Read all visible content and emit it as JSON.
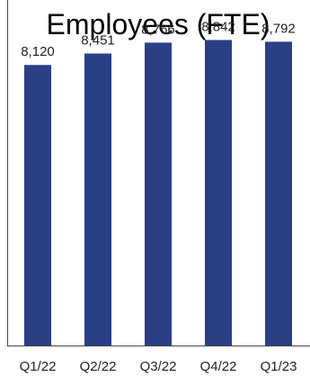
{
  "chart_data": {
    "type": "bar",
    "title": "Employees (FTE)",
    "categories": [
      "Q1/22",
      "Q2/22",
      "Q3/22",
      "Q4/22",
      "Q1/23"
    ],
    "values": [
      8120,
      8451,
      8766,
      8842,
      8792
    ],
    "value_labels": [
      "8,120",
      "8,451",
      "8,766",
      "8,842",
      "8,792"
    ],
    "ylim": [
      0,
      10000
    ],
    "grid": false,
    "legend": "none",
    "bar_color": "#2B3F87",
    "axis_color": "#444444"
  }
}
